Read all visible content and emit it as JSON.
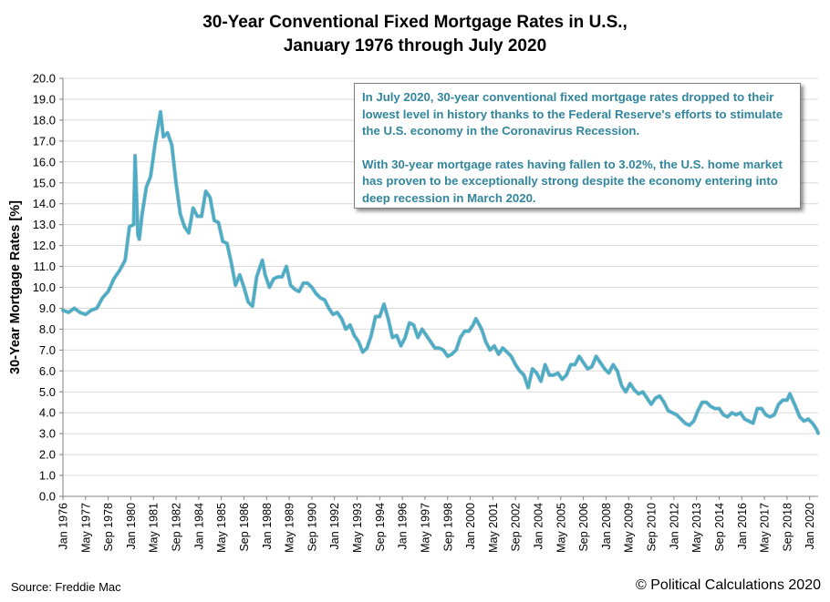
{
  "title_line1": "30-Year Conventional Fixed Mortgage Rates in U.S.,",
  "title_line2": "January 1976 through July 2020",
  "source": "Source: Freddie Mac",
  "credit": "© Political Calculations 2020",
  "annotation": {
    "paragraph1": "In July 2020, 30-year conventional fixed mortgage rates dropped to their lowest level in history thanks to the Federal Reserve's efforts to stimulate the U.S. economy in the Coronavirus Recession.",
    "paragraph2": "With 30-year mortgage rates having fallen to 3.02%, the U.S. home market has proven to be exceptionally strong despite the economy entering into deep recession in March 2020."
  },
  "colors": {
    "line": "#4bacc6",
    "line_dark": "#31859c",
    "grid": "#d9d9d9"
  },
  "chart_data": {
    "type": "line",
    "title": "30-Year Conventional Fixed Mortgage Rates in U.S., January 1976 through July 2020",
    "ylabel": "30-Year Mortgage Rates [%]",
    "xlabel": "",
    "ylim": [
      0,
      20
    ],
    "yticks": [
      "0.0",
      "1.0",
      "2.0",
      "3.0",
      "4.0",
      "5.0",
      "6.0",
      "7.0",
      "8.0",
      "9.0",
      "10.0",
      "11.0",
      "12.0",
      "13.0",
      "14.0",
      "15.0",
      "16.0",
      "17.0",
      "18.0",
      "19.0",
      "20.0"
    ],
    "xlim": [
      "1976-01",
      "2020-07"
    ],
    "xticks": [
      "Jan 1976",
      "May 1977",
      "Sep 1978",
      "Jan 1980",
      "May 1981",
      "Sep 1982",
      "Jan 1984",
      "May 1985",
      "Sep 1986",
      "Jan 1988",
      "May 1989",
      "Sep 1990",
      "Jan 1992",
      "May 1993",
      "Sep 1994",
      "Jan 1996",
      "May 1997",
      "Sep 1998",
      "Jan 2000",
      "May 2001",
      "Sep 2002",
      "Jan 2004",
      "May 2005",
      "Sep 2006",
      "Jan 2008",
      "May 2009",
      "Sep 2010",
      "Jan 2012",
      "May 2013",
      "Sep 2014",
      "Jan 2016",
      "May 2017",
      "Sep 2018",
      "Jan 2020"
    ],
    "grid": true,
    "legend": "none",
    "series": [
      {
        "values": [
          [
            "1976-01",
            8.9
          ],
          [
            "1976-05",
            8.8
          ],
          [
            "1976-09",
            9.0
          ],
          [
            "1977-01",
            8.8
          ],
          [
            "1977-05",
            8.7
          ],
          [
            "1977-09",
            8.9
          ],
          [
            "1978-01",
            9.0
          ],
          [
            "1978-05",
            9.5
          ],
          [
            "1978-09",
            9.8
          ],
          [
            "1979-01",
            10.4
          ],
          [
            "1979-05",
            10.8
          ],
          [
            "1979-09",
            11.3
          ],
          [
            "1979-12",
            12.9
          ],
          [
            "1980-03",
            13.0
          ],
          [
            "1980-04",
            16.3
          ],
          [
            "1980-06",
            12.5
          ],
          [
            "1980-07",
            12.3
          ],
          [
            "1980-09",
            13.5
          ],
          [
            "1980-12",
            14.8
          ],
          [
            "1981-03",
            15.3
          ],
          [
            "1981-06",
            16.8
          ],
          [
            "1981-10",
            18.4
          ],
          [
            "1981-12",
            17.2
          ],
          [
            "1982-03",
            17.4
          ],
          [
            "1982-06",
            16.8
          ],
          [
            "1982-09",
            15.0
          ],
          [
            "1982-12",
            13.5
          ],
          [
            "1983-03",
            12.9
          ],
          [
            "1983-06",
            12.6
          ],
          [
            "1983-09",
            13.8
          ],
          [
            "1983-12",
            13.4
          ],
          [
            "1984-03",
            13.4
          ],
          [
            "1984-06",
            14.6
          ],
          [
            "1984-09",
            14.3
          ],
          [
            "1984-12",
            13.2
          ],
          [
            "1985-03",
            13.1
          ],
          [
            "1985-06",
            12.2
          ],
          [
            "1985-09",
            12.1
          ],
          [
            "1985-12",
            11.2
          ],
          [
            "1986-03",
            10.1
          ],
          [
            "1986-06",
            10.6
          ],
          [
            "1986-09",
            10.0
          ],
          [
            "1986-12",
            9.3
          ],
          [
            "1987-03",
            9.1
          ],
          [
            "1987-06",
            10.5
          ],
          [
            "1987-10",
            11.3
          ],
          [
            "1987-12",
            10.6
          ],
          [
            "1988-03",
            10.0
          ],
          [
            "1988-06",
            10.4
          ],
          [
            "1988-09",
            10.5
          ],
          [
            "1988-12",
            10.5
          ],
          [
            "1989-03",
            11.0
          ],
          [
            "1989-06",
            10.1
          ],
          [
            "1989-09",
            9.9
          ],
          [
            "1989-12",
            9.8
          ],
          [
            "1990-03",
            10.2
          ],
          [
            "1990-06",
            10.2
          ],
          [
            "1990-09",
            10.0
          ],
          [
            "1990-12",
            9.7
          ],
          [
            "1991-03",
            9.5
          ],
          [
            "1991-06",
            9.4
          ],
          [
            "1991-09",
            9.0
          ],
          [
            "1991-12",
            8.7
          ],
          [
            "1992-03",
            8.8
          ],
          [
            "1992-06",
            8.5
          ],
          [
            "1992-09",
            8.0
          ],
          [
            "1992-12",
            8.2
          ],
          [
            "1993-03",
            7.7
          ],
          [
            "1993-06",
            7.4
          ],
          [
            "1993-09",
            6.9
          ],
          [
            "1993-12",
            7.1
          ],
          [
            "1994-03",
            7.7
          ],
          [
            "1994-06",
            8.6
          ],
          [
            "1994-09",
            8.6
          ],
          [
            "1994-12",
            9.2
          ],
          [
            "1995-03",
            8.5
          ],
          [
            "1995-06",
            7.6
          ],
          [
            "1995-09",
            7.7
          ],
          [
            "1995-12",
            7.2
          ],
          [
            "1996-03",
            7.6
          ],
          [
            "1996-06",
            8.3
          ],
          [
            "1996-09",
            8.2
          ],
          [
            "1996-12",
            7.6
          ],
          [
            "1997-03",
            8.0
          ],
          [
            "1997-06",
            7.7
          ],
          [
            "1997-09",
            7.4
          ],
          [
            "1997-12",
            7.1
          ],
          [
            "1998-03",
            7.1
          ],
          [
            "1998-06",
            7.0
          ],
          [
            "1998-09",
            6.7
          ],
          [
            "1998-12",
            6.8
          ],
          [
            "1999-03",
            7.0
          ],
          [
            "1999-06",
            7.6
          ],
          [
            "1999-09",
            7.9
          ],
          [
            "1999-12",
            7.9
          ],
          [
            "2000-03",
            8.2
          ],
          [
            "2000-05",
            8.5
          ],
          [
            "2000-09",
            8.0
          ],
          [
            "2000-12",
            7.4
          ],
          [
            "2001-03",
            7.0
          ],
          [
            "2001-06",
            7.2
          ],
          [
            "2001-09",
            6.8
          ],
          [
            "2001-12",
            7.1
          ],
          [
            "2002-03",
            6.9
          ],
          [
            "2002-06",
            6.7
          ],
          [
            "2002-09",
            6.3
          ],
          [
            "2002-12",
            6.0
          ],
          [
            "2003-03",
            5.8
          ],
          [
            "2003-06",
            5.2
          ],
          [
            "2003-09",
            6.1
          ],
          [
            "2003-12",
            5.9
          ],
          [
            "2004-03",
            5.5
          ],
          [
            "2004-06",
            6.3
          ],
          [
            "2004-09",
            5.8
          ],
          [
            "2004-12",
            5.8
          ],
          [
            "2005-03",
            5.9
          ],
          [
            "2005-06",
            5.6
          ],
          [
            "2005-09",
            5.8
          ],
          [
            "2005-12",
            6.3
          ],
          [
            "2006-03",
            6.3
          ],
          [
            "2006-06",
            6.7
          ],
          [
            "2006-09",
            6.4
          ],
          [
            "2006-12",
            6.1
          ],
          [
            "2007-03",
            6.2
          ],
          [
            "2007-06",
            6.7
          ],
          [
            "2007-09",
            6.4
          ],
          [
            "2007-12",
            6.1
          ],
          [
            "2008-03",
            5.9
          ],
          [
            "2008-06",
            6.3
          ],
          [
            "2008-09",
            6.0
          ],
          [
            "2008-12",
            5.3
          ],
          [
            "2009-03",
            5.0
          ],
          [
            "2009-06",
            5.4
          ],
          [
            "2009-09",
            5.1
          ],
          [
            "2009-12",
            4.9
          ],
          [
            "2010-03",
            5.0
          ],
          [
            "2010-06",
            4.7
          ],
          [
            "2010-09",
            4.4
          ],
          [
            "2010-12",
            4.7
          ],
          [
            "2011-03",
            4.8
          ],
          [
            "2011-06",
            4.5
          ],
          [
            "2011-09",
            4.1
          ],
          [
            "2011-12",
            4.0
          ],
          [
            "2012-03",
            3.9
          ],
          [
            "2012-06",
            3.7
          ],
          [
            "2012-09",
            3.5
          ],
          [
            "2012-12",
            3.4
          ],
          [
            "2013-03",
            3.6
          ],
          [
            "2013-06",
            4.1
          ],
          [
            "2013-09",
            4.5
          ],
          [
            "2013-12",
            4.5
          ],
          [
            "2014-03",
            4.3
          ],
          [
            "2014-06",
            4.2
          ],
          [
            "2014-09",
            4.2
          ],
          [
            "2014-12",
            3.9
          ],
          [
            "2015-03",
            3.8
          ],
          [
            "2015-06",
            4.0
          ],
          [
            "2015-09",
            3.9
          ],
          [
            "2015-12",
            4.0
          ],
          [
            "2016-03",
            3.7
          ],
          [
            "2016-06",
            3.6
          ],
          [
            "2016-09",
            3.5
          ],
          [
            "2016-12",
            4.2
          ],
          [
            "2017-03",
            4.2
          ],
          [
            "2017-06",
            3.9
          ],
          [
            "2017-09",
            3.8
          ],
          [
            "2017-12",
            3.9
          ],
          [
            "2018-03",
            4.4
          ],
          [
            "2018-06",
            4.6
          ],
          [
            "2018-09",
            4.6
          ],
          [
            "2018-11",
            4.9
          ],
          [
            "2019-03",
            4.3
          ],
          [
            "2019-06",
            3.8
          ],
          [
            "2019-09",
            3.6
          ],
          [
            "2019-12",
            3.7
          ],
          [
            "2020-03",
            3.5
          ],
          [
            "2020-06",
            3.2
          ],
          [
            "2020-07",
            3.02
          ]
        ]
      }
    ]
  }
}
